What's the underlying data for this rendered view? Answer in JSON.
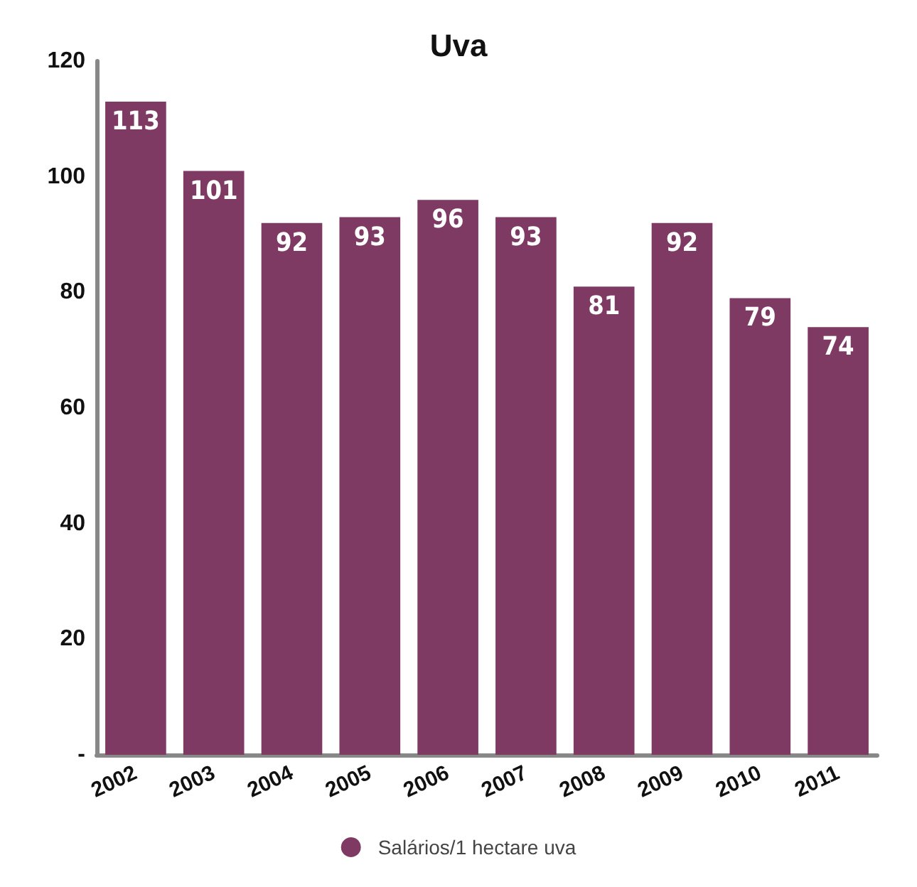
{
  "chart_data": {
    "type": "bar",
    "title": "Uva",
    "categories": [
      "2002",
      "2003",
      "2004",
      "2005",
      "2006",
      "2007",
      "2008",
      "2009",
      "2010",
      "2011"
    ],
    "series": [
      {
        "name": "Salários/1 hectare uva",
        "color": "#7e3a63",
        "values": [
          113,
          101,
          92,
          93,
          96,
          93,
          81,
          92,
          79,
          74
        ]
      }
    ],
    "ylim": [
      0,
      120
    ],
    "yticks": [
      {
        "value": 0,
        "label": "-"
      },
      20,
      40,
      60,
      80,
      100,
      120
    ],
    "grid": false,
    "legend": "bottom",
    "data_labels": true
  }
}
